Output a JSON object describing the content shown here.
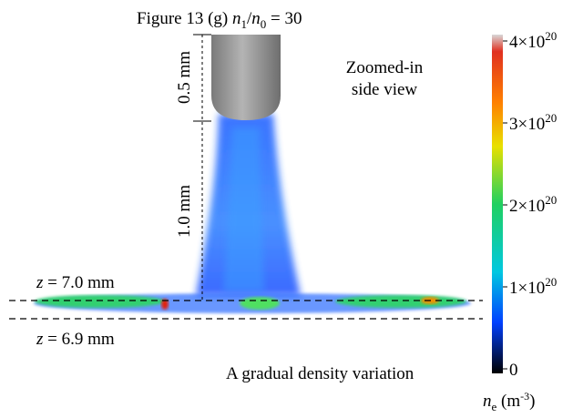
{
  "title": {
    "prefix": "Figure 13 (g) ",
    "var1": "n",
    "sub1": "1",
    "slash": "/",
    "var2": "n",
    "sub2": "0",
    "suffix": " = 30"
  },
  "view_label": [
    "Zoomed-in",
    "side view"
  ],
  "dimensions": [
    "0.5 mm",
    "1.0 mm"
  ],
  "z_upper": {
    "var": "z",
    "text": " = 7.0 mm"
  },
  "z_lower": {
    "var": "z",
    "text": " = 6.9 mm"
  },
  "caption": "A gradual density variation",
  "colorbar": {
    "range": [
      0,
      4e+20
    ],
    "ticks": [
      {
        "value": 0,
        "label": "0"
      },
      {
        "value": 1e+20,
        "mantissa": "1×10",
        "exponent": "20"
      },
      {
        "value": 2e+20,
        "mantissa": "2×10",
        "exponent": "20"
      },
      {
        "value": 3e+20,
        "mantissa": "3×10",
        "exponent": "20"
      },
      {
        "value": 4e+20,
        "mantissa": "4×10",
        "exponent": "20"
      }
    ],
    "label": {
      "var": "n",
      "sub": "e",
      "unit": " (m",
      "exp": "-3",
      "close": ")"
    }
  }
}
